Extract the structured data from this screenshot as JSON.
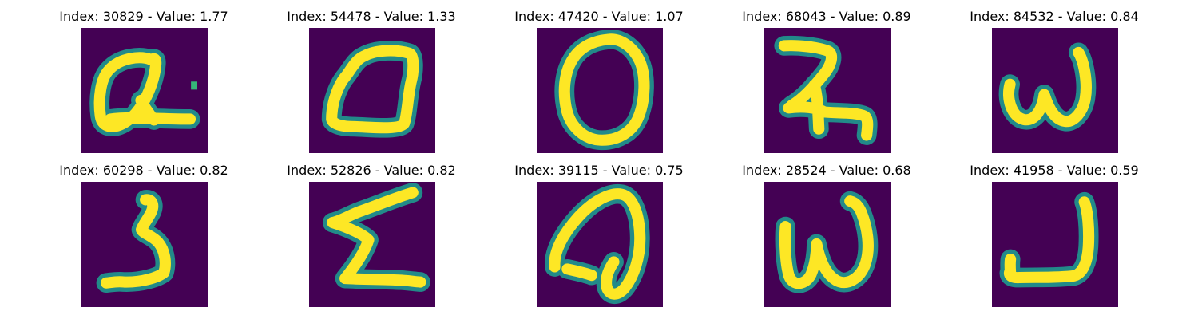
{
  "colors": {
    "background": "#440154",
    "foreground": "#fde725",
    "edge": "#21918c",
    "speck": "#35b779"
  },
  "panels": [
    {
      "title": "Index: 30829 - Value: 1.77",
      "glyph": "q-with-line"
    },
    {
      "title": "Index: 54478 - Value: 1.33",
      "glyph": "zero-angular"
    },
    {
      "title": "Index: 47420 - Value: 1.07",
      "glyph": "zero-round"
    },
    {
      "title": "Index: 68043 - Value: 0.89",
      "glyph": "two-hooked"
    },
    {
      "title": "Index: 84532 - Value: 0.84",
      "glyph": "w-curve"
    },
    {
      "title": "Index: 60298 - Value: 0.82",
      "glyph": "s-angular"
    },
    {
      "title": "Index: 52826 - Value: 0.82",
      "glyph": "sigma"
    },
    {
      "title": "Index: 39115 - Value: 0.75",
      "glyph": "a-loop"
    },
    {
      "title": "Index: 28524 - Value: 0.68",
      "glyph": "w-tall"
    },
    {
      "title": "Index: 41958 - Value: 0.59",
      "glyph": "j-hook"
    }
  ]
}
